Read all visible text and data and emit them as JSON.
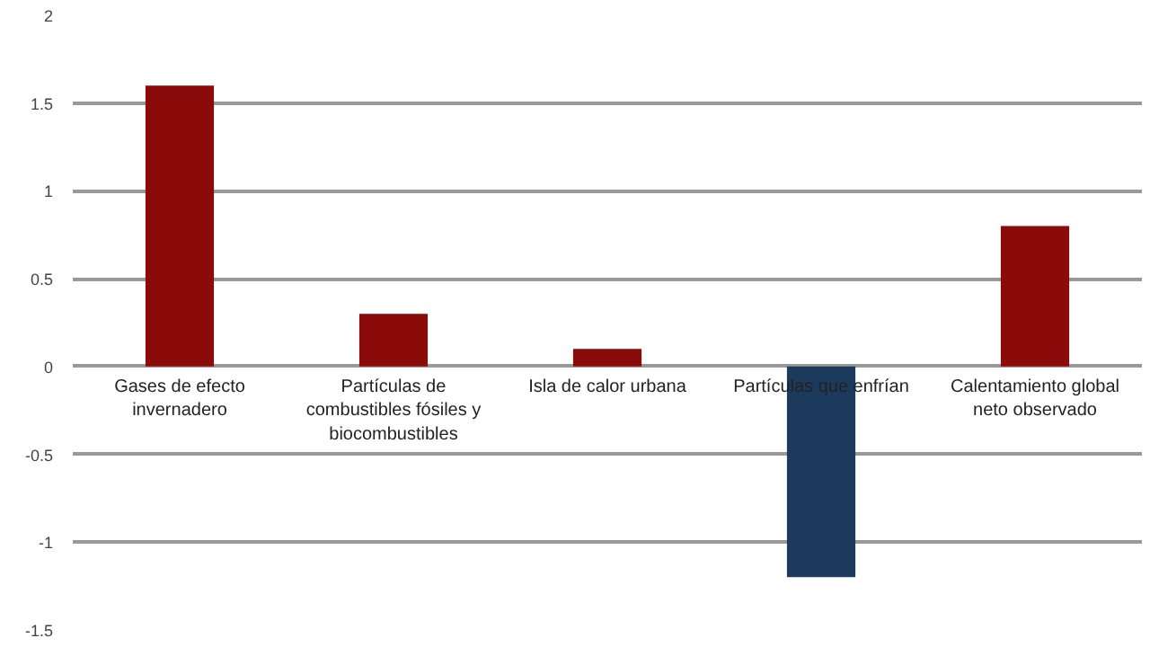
{
  "chart_data": {
    "type": "bar",
    "categories": [
      "Gases de efecto invernadero",
      "Partículas de combustibles fósiles y biocombustibles",
      "Isla de calor urbana",
      "Partículas que enfrían",
      "Calentamiento global neto observado"
    ],
    "values": [
      1.6,
      0.3,
      0.1,
      -1.2,
      0.8
    ],
    "colors": [
      "#8b0a0a",
      "#8b0a0a",
      "#8b0a0a",
      "#1b3a5c",
      "#8b0a0a"
    ],
    "ylim": [
      -1.5,
      2
    ],
    "yticks": [
      -1.5,
      -1,
      -0.5,
      0,
      0.5,
      1,
      1.5,
      2
    ],
    "grid": "y"
  }
}
